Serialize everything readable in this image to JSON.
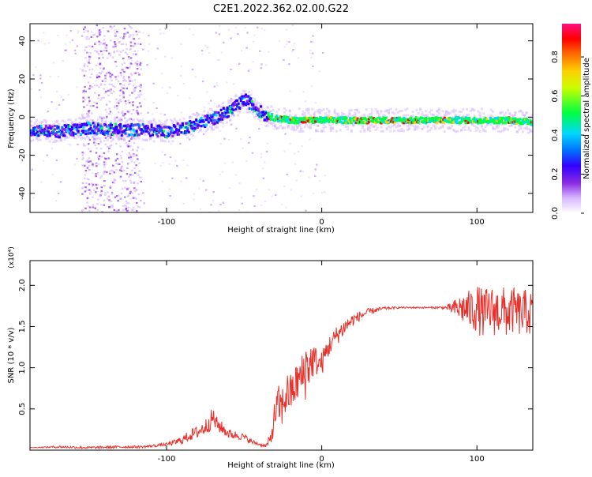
{
  "title": "C2E1.2022.362.02.00.G22",
  "chart_data": [
    {
      "type": "heatmap",
      "xlabel": "Height of straight line (km)",
      "ylabel": "Frequency (Hz)",
      "xlim": [
        -188,
        136
      ],
      "ylim": [
        -50,
        49
      ],
      "xticks": [
        -100,
        0,
        100
      ],
      "yticks": [
        -40,
        -20,
        0,
        20,
        40
      ],
      "colorbar": {
        "label": "Normalized spectral amplitude",
        "range": [
          0,
          0.97
        ],
        "ticks": [
          0.0,
          0.2,
          0.4,
          0.6,
          0.8
        ],
        "colors": [
          "#ffffff",
          "#d7b8ff",
          "#8a2be2",
          "#3300ff",
          "#0070ff",
          "#00d8ff",
          "#00ff40",
          "#c8ff00",
          "#ffd000",
          "#ff6a00",
          "#ff0000",
          "#ff0f80"
        ]
      },
      "ridge": {
        "x": [
          -188,
          -170,
          -150,
          -130,
          -115,
          -100,
          -85,
          -70,
          -58,
          -50,
          -44,
          -38,
          -30,
          -20,
          -10,
          0,
          20,
          40,
          60,
          80,
          100,
          120,
          136
        ],
        "y": [
          -6,
          -7,
          -5,
          -6,
          -6,
          -7,
          -4,
          0,
          5,
          10,
          6,
          2,
          0,
          -1,
          -1,
          -1,
          -1,
          -1,
          -1,
          -1,
          -1,
          -1,
          -2
        ]
      }
    },
    {
      "type": "line",
      "xlabel": "Height of straight line (km)",
      "ylabel": "SNR (10 * v/v)",
      "scale_label": "(x10⁴)",
      "xlim": [
        -188,
        136
      ],
      "ylim": [
        0,
        2.3
      ],
      "xticks": [
        -100,
        0,
        100
      ],
      "yticks": [
        0.5,
        1.0,
        1.5,
        2.0
      ],
      "ytick_labels": [
        "0.5",
        "1.0",
        "1.5",
        "2.0"
      ],
      "series": [
        {
          "color": "#e8302b",
          "x": [
            -188,
            -170,
            -150,
            -130,
            -115,
            -100,
            -90,
            -85,
            -80,
            -75,
            -72,
            -70,
            -68,
            -65,
            -60,
            -55,
            -50,
            -45,
            -40,
            -36,
            -33,
            -30,
            -28,
            -26,
            -24,
            -22,
            -20,
            -18,
            -15,
            -12,
            -10,
            -8,
            -5,
            -2,
            0,
            3,
            6,
            10,
            15,
            20,
            25,
            30,
            40,
            50,
            60,
            70,
            80,
            84,
            88,
            92,
            96,
            100,
            104,
            108,
            112,
            116,
            120,
            124,
            128,
            132,
            136
          ],
          "y": [
            0.03,
            0.04,
            0.03,
            0.04,
            0.04,
            0.07,
            0.12,
            0.18,
            0.22,
            0.28,
            0.35,
            0.4,
            0.32,
            0.28,
            0.2,
            0.18,
            0.16,
            0.1,
            0.07,
            0.05,
            0.12,
            0.45,
            0.55,
            0.5,
            0.62,
            0.7,
            0.68,
            0.75,
            0.85,
            0.9,
            1.0,
            1.05,
            1.1,
            1.05,
            1.05,
            1.2,
            1.3,
            1.4,
            1.5,
            1.58,
            1.63,
            1.68,
            1.72,
            1.73,
            1.73,
            1.73,
            1.73,
            1.72,
            1.72,
            1.72,
            1.7,
            1.72,
            1.65,
            1.7,
            1.68,
            1.7,
            1.65,
            1.7,
            1.65,
            1.68,
            1.65
          ],
          "noise": [
            0,
            0.015,
            0.015,
            0.015,
            0.015,
            0.02,
            0.05,
            0.07,
            0.08,
            0.1,
            0.12,
            0.12,
            0.1,
            0.08,
            0.06,
            0.05,
            0.04,
            0.03,
            0.02,
            0.02,
            0.1,
            0.2,
            0.25,
            0.25,
            0.25,
            0.25,
            0.25,
            0.25,
            0.25,
            0.3,
            0.4,
            0.3,
            0.2,
            0.15,
            0.15,
            0.15,
            0.12,
            0.12,
            0.1,
            0.08,
            0.06,
            0.04,
            0.02,
            0.01,
            0.01,
            0.01,
            0.02,
            0.08,
            0.15,
            0.2,
            0.25,
            0.3,
            0.3,
            0.3,
            0.3,
            0.3,
            0.3,
            0.28,
            0.28,
            0.28,
            0.28
          ]
        }
      ]
    }
  ]
}
